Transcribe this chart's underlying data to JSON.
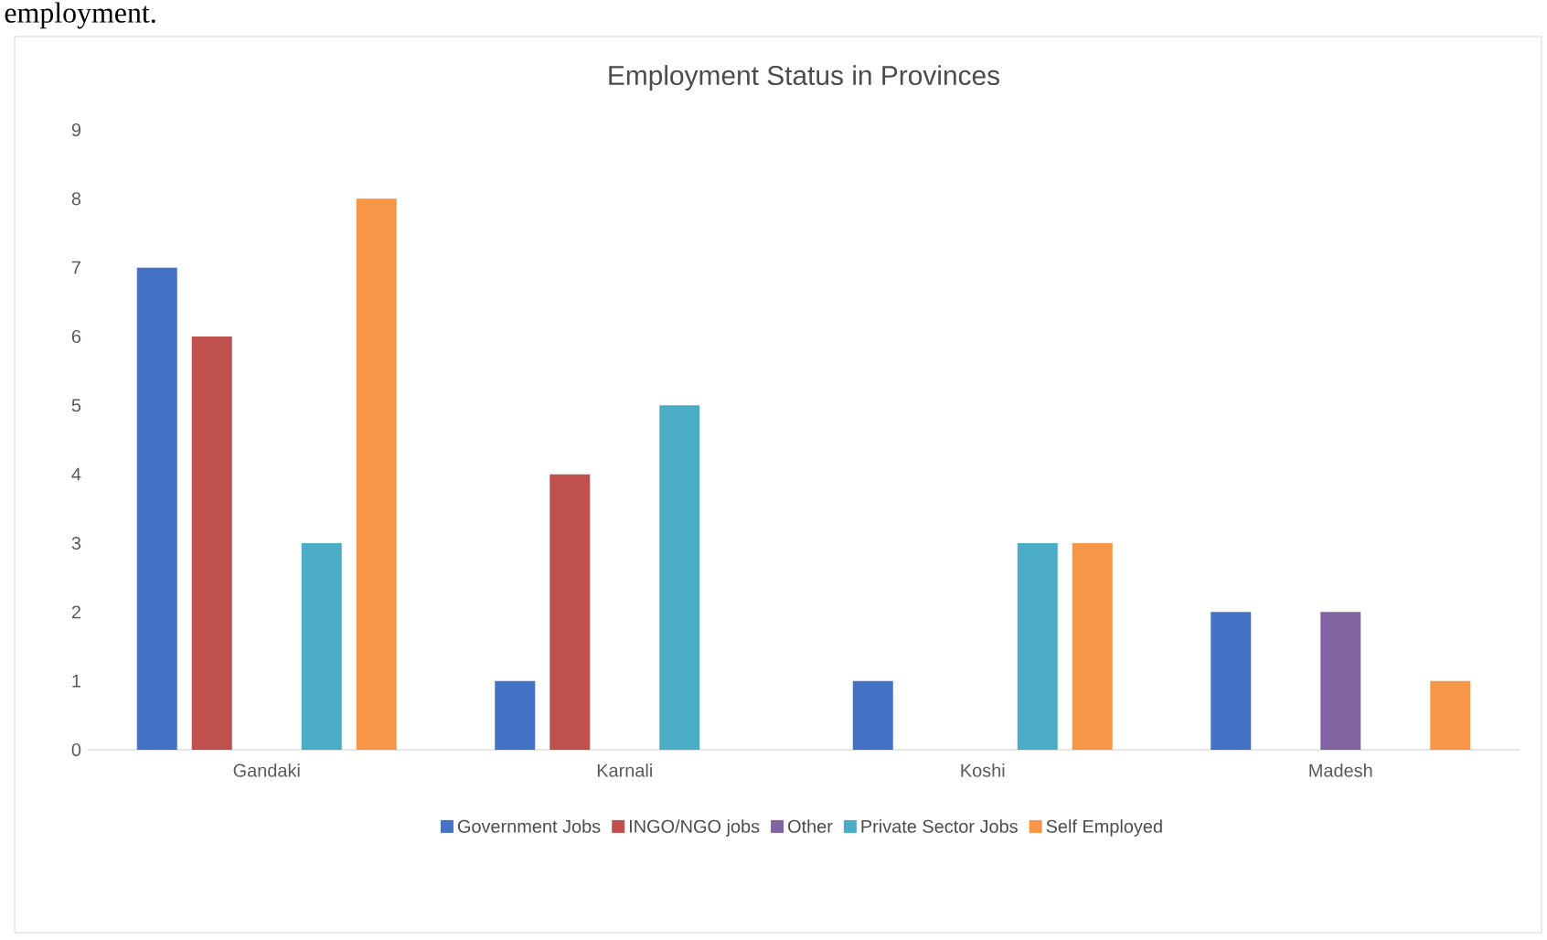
{
  "chart_data": {
    "type": "bar",
    "title": "Employment Status in Provinces",
    "annotations": [
      "employment."
    ],
    "categories": [
      "Gandaki",
      "Karnali",
      "Koshi",
      "Madesh"
    ],
    "series": [
      {
        "name": "Government Jobs",
        "color": "#4472c4",
        "values": [
          7,
          1,
          1,
          2
        ]
      },
      {
        "name": "INGO/NGO jobs",
        "color": "#c0504d",
        "values": [
          6,
          4,
          null,
          null
        ]
      },
      {
        "name": "Other",
        "color": "#8064a2",
        "values": [
          null,
          null,
          null,
          2
        ]
      },
      {
        "name": "Private Sector Jobs",
        "color": "#4bacc6",
        "values": [
          3,
          5,
          3,
          null
        ]
      },
      {
        "name": "Self Employed",
        "color": "#f79646",
        "values": [
          8,
          null,
          3,
          1
        ]
      }
    ],
    "ylim": [
      0,
      9
    ],
    "yticks": [
      0,
      1,
      2,
      3,
      4,
      5,
      6,
      7,
      8,
      9
    ],
    "grid": false,
    "legend": "bottom"
  }
}
